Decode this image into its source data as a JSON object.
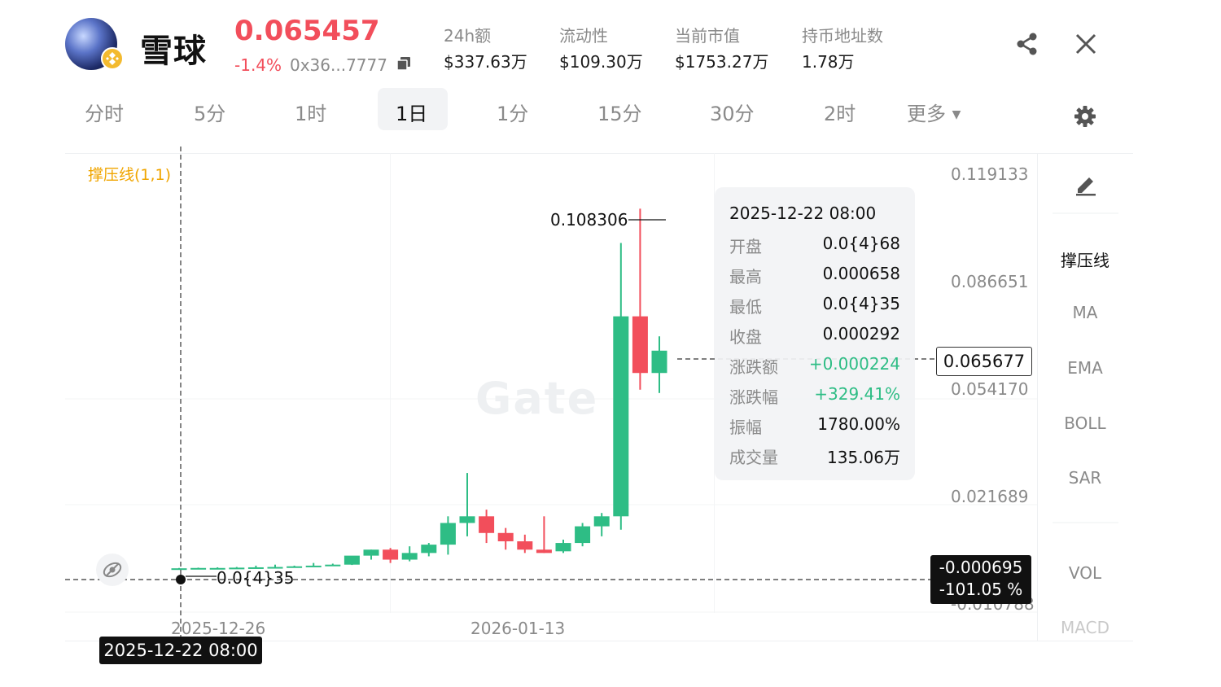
{
  "header": {
    "coin_name": "雪球",
    "price": "0.065457",
    "change": "-1.4%",
    "address": "0x36...7777",
    "stats": [
      {
        "label": "24h额",
        "value": "$337.63万"
      },
      {
        "label": "流动性",
        "value": "$109.30万"
      },
      {
        "label": "当前市值",
        "value": "$1753.27万"
      },
      {
        "label": "持币地址数",
        "value": "1.78万"
      }
    ]
  },
  "tabs": [
    "分时",
    "5分",
    "1时",
    "1日",
    "1分",
    "15分",
    "30分",
    "2时",
    "更多"
  ],
  "active_tab": "1日",
  "sidebar": {
    "tools": [
      "撑压线",
      "MA",
      "EMA",
      "BOLL",
      "SAR",
      "VOL",
      "MACD"
    ]
  },
  "chart": {
    "indicator_label": "撑压线(1,1)",
    "watermark": "Gate",
    "peak_label": "0.108306",
    "low_label": "0.0{4}35",
    "y_axis_labels": [
      "0.119133",
      "0.086651",
      "0.054170",
      "0.021689",
      "-0.010788"
    ],
    "current_price_box": "0.065677",
    "cursor_value": "-0.000695",
    "cursor_percent": "-101.05 %",
    "cursor_date": "2025-12-22 08:00",
    "x_axis_labels": [
      "2025-12-26",
      "2026-01-13"
    ]
  },
  "tooltip": {
    "title": "2025-12-22 08:00",
    "rows": [
      {
        "label": "开盘",
        "value": "0.0{4}68"
      },
      {
        "label": "最高",
        "value": "0.000658"
      },
      {
        "label": "最低",
        "value": "0.0{4}35"
      },
      {
        "label": "收盘",
        "value": "0.000292"
      },
      {
        "label": "涨跌额",
        "value": "+0.000224"
      },
      {
        "label": "涨跌幅",
        "value": "+329.41%"
      },
      {
        "label": "振幅",
        "value": "1780.00%"
      },
      {
        "label": "成交量",
        "value": "135.06万"
      }
    ]
  },
  "colors": {
    "up": "#2ebd85",
    "down": "#f24e5b",
    "accent": "#f0a500"
  },
  "chart_data": {
    "type": "candlestick",
    "ylim": [
      -0.010788,
      0.119133
    ],
    "candles": [
      {
        "o": 0.0004,
        "h": 0.0005,
        "l": 0.0003,
        "c": 0.0004
      },
      {
        "o": 0.0005,
        "h": 0.0006,
        "l": 0.0003,
        "c": 0.0005
      },
      {
        "o": 0.0005,
        "h": 0.0007,
        "l": 0.0003,
        "c": 0.0005
      },
      {
        "o": 0.0006,
        "h": 0.0008,
        "l": 0.0004,
        "c": 0.0006
      },
      {
        "o": 0.0007,
        "h": 0.0012,
        "l": 0.0005,
        "c": 0.0007
      },
      {
        "o": 0.0008,
        "h": 0.0015,
        "l": 0.0006,
        "c": 0.0008
      },
      {
        "o": 0.0008,
        "h": 0.0012,
        "l": 0.0006,
        "c": 0.001
      },
      {
        "o": 0.001,
        "h": 0.002,
        "l": 0.0009,
        "c": 0.0012
      },
      {
        "o": 0.0012,
        "h": 0.0018,
        "l": 0.0011,
        "c": 0.0015
      },
      {
        "o": 0.0015,
        "h": 0.004,
        "l": 0.0014,
        "c": 0.0042
      },
      {
        "o": 0.0042,
        "h": 0.006,
        "l": 0.003,
        "c": 0.006
      },
      {
        "o": 0.006,
        "h": 0.0065,
        "l": 0.002,
        "c": 0.003
      },
      {
        "o": 0.003,
        "h": 0.007,
        "l": 0.0025,
        "c": 0.005
      },
      {
        "o": 0.005,
        "h": 0.008,
        "l": 0.004,
        "c": 0.0075
      },
      {
        "o": 0.0075,
        "h": 0.016,
        "l": 0.0045,
        "c": 0.014
      },
      {
        "o": 0.014,
        "h": 0.029,
        "l": 0.01,
        "c": 0.016
      },
      {
        "o": 0.016,
        "h": 0.018,
        "l": 0.008,
        "c": 0.011
      },
      {
        "o": 0.011,
        "h": 0.0125,
        "l": 0.006,
        "c": 0.0085
      },
      {
        "o": 0.0085,
        "h": 0.0105,
        "l": 0.005,
        "c": 0.006
      },
      {
        "o": 0.006,
        "h": 0.016,
        "l": 0.005,
        "c": 0.005
      },
      {
        "o": 0.0055,
        "h": 0.009,
        "l": 0.005,
        "c": 0.008
      },
      {
        "o": 0.008,
        "h": 0.014,
        "l": 0.007,
        "c": 0.013
      },
      {
        "o": 0.013,
        "h": 0.017,
        "l": 0.01,
        "c": 0.016
      },
      {
        "o": 0.016,
        "h": 0.098,
        "l": 0.012,
        "c": 0.076
      },
      {
        "o": 0.076,
        "h": 0.1083,
        "l": 0.054,
        "c": 0.059
      },
      {
        "o": 0.059,
        "h": 0.07,
        "l": 0.053,
        "c": 0.0657
      }
    ]
  }
}
